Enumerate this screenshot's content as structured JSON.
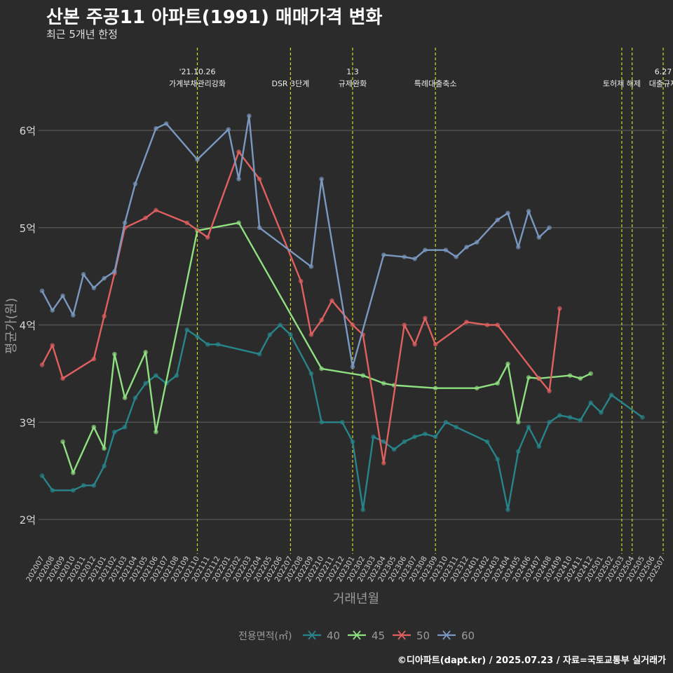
{
  "title": "산본 주공11 아파트(1991) 매매가격 변화",
  "subtitle": "최근 5개년 한정",
  "caption": "©디아파트(dapt.kr) / 2025.07.23 / 자료=국토교통부 실거래가",
  "chart_data": {
    "type": "line",
    "xlabel": "거래년월",
    "ylabel": "평균가(원)",
    "ylim": [
      1.6,
      6.75
    ],
    "y_ticks": [
      {
        "v": 2,
        "label": "2억"
      },
      {
        "v": 3,
        "label": "3억"
      },
      {
        "v": 4,
        "label": "4억"
      },
      {
        "v": 5,
        "label": "5억"
      },
      {
        "v": 6,
        "label": "6억"
      }
    ],
    "x_labels": [
      "202007",
      "202008",
      "202009",
      "202010",
      "202011",
      "202012",
      "202101",
      "202102",
      "202103",
      "202104",
      "202105",
      "202106",
      "202107",
      "202108",
      "202109",
      "202110",
      "202111",
      "202112",
      "202201",
      "202202",
      "202203",
      "202204",
      "202205",
      "202206",
      "202207",
      "202208",
      "202209",
      "202210",
      "202211",
      "202212",
      "202301",
      "202302",
      "202303",
      "202304",
      "202305",
      "202306",
      "202307",
      "202308",
      "202309",
      "202310",
      "202311",
      "202312",
      "202401",
      "202402",
      "202403",
      "202404",
      "202405",
      "202406",
      "202407",
      "202408",
      "202409",
      "202410",
      "202411",
      "202412",
      "202501",
      "202502",
      "202503",
      "202504",
      "202505",
      "202506",
      "202507"
    ],
    "legend": {
      "title": "전용면적(㎡)",
      "position": "bottom"
    },
    "grid": true,
    "series": [
      {
        "name": "40",
        "color": "#27858a",
        "points": [
          [
            0,
            2.45
          ],
          [
            1,
            2.3
          ],
          [
            3,
            2.3
          ],
          [
            4,
            2.35
          ],
          [
            5,
            2.35
          ],
          [
            6,
            2.55
          ],
          [
            7,
            2.9
          ],
          [
            8,
            2.95
          ],
          [
            9,
            3.25
          ],
          [
            10,
            3.4
          ],
          [
            11,
            3.48
          ],
          [
            12,
            3.4
          ],
          [
            13,
            3.48
          ],
          [
            14,
            3.95
          ],
          [
            15,
            3.88
          ],
          [
            16,
            3.8
          ],
          [
            17,
            3.8
          ],
          [
            21,
            3.7
          ],
          [
            22,
            3.9
          ],
          [
            23,
            4.0
          ],
          [
            24,
            3.9
          ],
          [
            26,
            3.5
          ],
          [
            27,
            3.0
          ],
          [
            29,
            3.0
          ],
          [
            30,
            2.8
          ],
          [
            31,
            2.1
          ],
          [
            32,
            2.85
          ],
          [
            33,
            2.8
          ],
          [
            34,
            2.72
          ],
          [
            35,
            2.8
          ],
          [
            36,
            2.85
          ],
          [
            37,
            2.88
          ],
          [
            38,
            2.85
          ],
          [
            39,
            3.0
          ],
          [
            40,
            2.95
          ],
          [
            43,
            2.8
          ],
          [
            44,
            2.62
          ],
          [
            45,
            2.1
          ],
          [
            46,
            2.7
          ],
          [
            47,
            2.95
          ],
          [
            48,
            2.75
          ],
          [
            49,
            3.0
          ],
          [
            50,
            3.07
          ],
          [
            51,
            3.05
          ],
          [
            52,
            3.02
          ],
          [
            53,
            3.2
          ],
          [
            54,
            3.1
          ],
          [
            55,
            3.28
          ],
          [
            58,
            3.05
          ]
        ]
      },
      {
        "name": "45",
        "color": "#8fe080",
        "points": [
          [
            2,
            2.8
          ],
          [
            3,
            2.48
          ],
          [
            5,
            2.95
          ],
          [
            6,
            2.73
          ],
          [
            7,
            3.7
          ],
          [
            8,
            3.25
          ],
          [
            10,
            3.72
          ],
          [
            11,
            2.9
          ],
          [
            15,
            4.97
          ],
          [
            19,
            5.05
          ],
          [
            27,
            3.55
          ],
          [
            31,
            3.48
          ],
          [
            33,
            3.4
          ],
          [
            34,
            3.38
          ],
          [
            38,
            3.35
          ],
          [
            42,
            3.35
          ],
          [
            44,
            3.4
          ],
          [
            45,
            3.6
          ],
          [
            46,
            3.0
          ],
          [
            47,
            3.46
          ],
          [
            48,
            3.45
          ],
          [
            51,
            3.48
          ],
          [
            52,
            3.45
          ],
          [
            53,
            3.5
          ]
        ]
      },
      {
        "name": "50",
        "color": "#e06060",
        "points": [
          [
            0,
            3.59
          ],
          [
            1,
            3.79
          ],
          [
            2,
            3.45
          ],
          [
            5,
            3.65
          ],
          [
            6,
            4.09
          ],
          [
            7,
            4.53
          ],
          [
            8,
            5.0
          ],
          [
            10,
            5.1
          ],
          [
            11,
            5.18
          ],
          [
            14,
            5.05
          ],
          [
            16,
            4.9
          ],
          [
            19,
            5.78
          ],
          [
            21,
            5.5
          ],
          [
            25,
            4.45
          ],
          [
            26,
            3.9
          ],
          [
            27,
            4.05
          ],
          [
            28,
            4.25
          ],
          [
            30,
            4.0
          ],
          [
            31,
            3.9
          ],
          [
            33,
            2.58
          ],
          [
            35,
            4.0
          ],
          [
            36,
            3.8
          ],
          [
            37,
            4.07
          ],
          [
            38,
            3.8
          ],
          [
            41,
            4.03
          ],
          [
            43,
            4.0
          ],
          [
            44,
            4.0
          ],
          [
            48,
            3.45
          ],
          [
            49,
            3.32
          ],
          [
            50,
            4.17
          ]
        ]
      },
      {
        "name": "60",
        "color": "#7a98c0",
        "points": [
          [
            0,
            4.35
          ],
          [
            1,
            4.15
          ],
          [
            2,
            4.3
          ],
          [
            3,
            4.1
          ],
          [
            4,
            4.52
          ],
          [
            5,
            4.38
          ],
          [
            6,
            4.48
          ],
          [
            7,
            4.55
          ],
          [
            8,
            5.05
          ],
          [
            9,
            5.45
          ],
          [
            11,
            6.02
          ],
          [
            12,
            6.07
          ],
          [
            15,
            5.7
          ],
          [
            18,
            6.01
          ],
          [
            19,
            5.5
          ],
          [
            20,
            6.15
          ],
          [
            21,
            5.0
          ],
          [
            26,
            4.6
          ],
          [
            27,
            5.5
          ],
          [
            30,
            3.57
          ],
          [
            33,
            4.72
          ],
          [
            35,
            4.7
          ],
          [
            36,
            4.68
          ],
          [
            37,
            4.77
          ],
          [
            39,
            4.77
          ],
          [
            40,
            4.7
          ],
          [
            41,
            4.8
          ],
          [
            42,
            4.85
          ],
          [
            44,
            5.08
          ],
          [
            45,
            5.15
          ],
          [
            46,
            4.8
          ],
          [
            47,
            5.17
          ],
          [
            48,
            4.9
          ],
          [
            49,
            5.0
          ]
        ]
      }
    ],
    "events": [
      {
        "i": 15,
        "lines": [
          "'21.10.26",
          "가계부채관리강화"
        ]
      },
      {
        "i": 24,
        "lines": [
          "DSR 3단계"
        ]
      },
      {
        "i": 30,
        "lines": [
          "1.3",
          "규제완화"
        ]
      },
      {
        "i": 38,
        "lines": [
          "특례대출축소"
        ]
      },
      {
        "i": 56,
        "lines": [
          "토허제 해제"
        ]
      },
      {
        "i": 57,
        "lines": [
          ""
        ]
      },
      {
        "i": 60,
        "lines": [
          "6.27",
          "대출규제"
        ]
      }
    ]
  }
}
